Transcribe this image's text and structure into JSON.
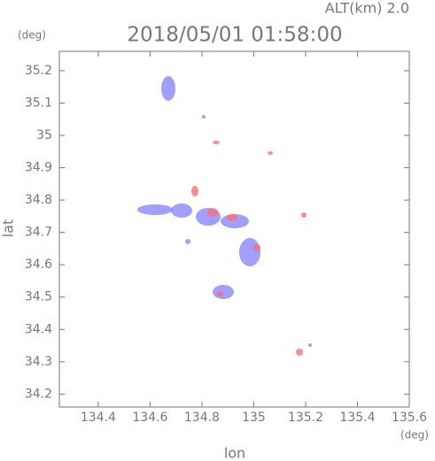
{
  "chart_data": {
    "type": "field",
    "title": "2018/05/01 01:58:00",
    "subtitle": "ALT(km) 2.0",
    "x_label": "lon",
    "y_label": "lat",
    "x_unit": "(deg)",
    "y_unit": "(deg)",
    "xlim": [
      134.25,
      135.6
    ],
    "ylim": [
      34.16,
      35.26
    ],
    "xticks": [
      134.4,
      134.6,
      134.8,
      135.0,
      135.2,
      135.4,
      135.6
    ],
    "yticks": [
      34.2,
      34.3,
      34.4,
      34.5,
      34.6,
      34.7,
      34.8,
      34.9,
      35.0,
      35.1,
      35.2
    ]
  }
}
